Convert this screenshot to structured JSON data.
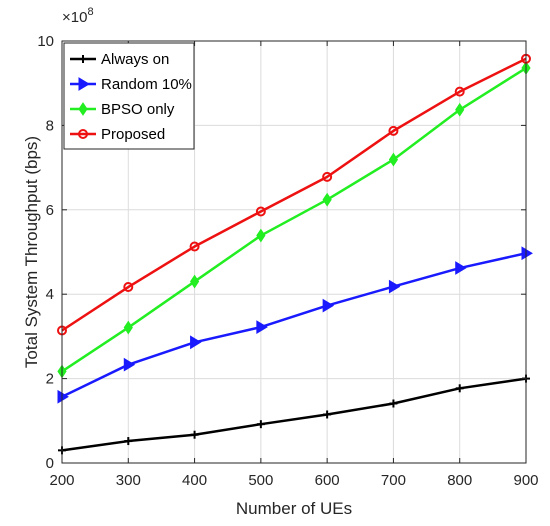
{
  "chart_data": {
    "type": "line",
    "xlabel": "Number of UEs",
    "ylabel": "Total System Throughput (bps)",
    "y_exponent_label": "×10",
    "y_exponent_power": "8",
    "xlim": [
      200,
      900
    ],
    "ylim": [
      0,
      10
    ],
    "x_ticks": [
      200,
      300,
      400,
      500,
      600,
      700,
      800,
      900
    ],
    "y_ticks": [
      0,
      2,
      4,
      6,
      8,
      10
    ],
    "grid": true,
    "legend_position": "top-left",
    "x": [
      200,
      300,
      400,
      500,
      600,
      700,
      800,
      900
    ],
    "series": [
      {
        "name": "Always on",
        "color": "#000000",
        "marker": "plus",
        "values": [
          0.3,
          0.52,
          0.67,
          0.92,
          1.15,
          1.41,
          1.77,
          2.0
        ]
      },
      {
        "name": "Random 10%",
        "color": "#1a1aff",
        "marker": "triangle-right",
        "values": [
          1.57,
          2.33,
          2.86,
          3.22,
          3.73,
          4.18,
          4.62,
          4.97
        ]
      },
      {
        "name": "BPSO only",
        "color": "#22ee22",
        "marker": "diamond",
        "values": [
          2.17,
          3.21,
          4.3,
          5.39,
          6.24,
          7.19,
          8.37,
          9.36
        ]
      },
      {
        "name": "Proposed",
        "color": "#ee1111",
        "marker": "circle",
        "values": [
          3.14,
          4.17,
          5.13,
          5.96,
          6.78,
          7.87,
          8.8,
          9.58
        ]
      }
    ]
  }
}
